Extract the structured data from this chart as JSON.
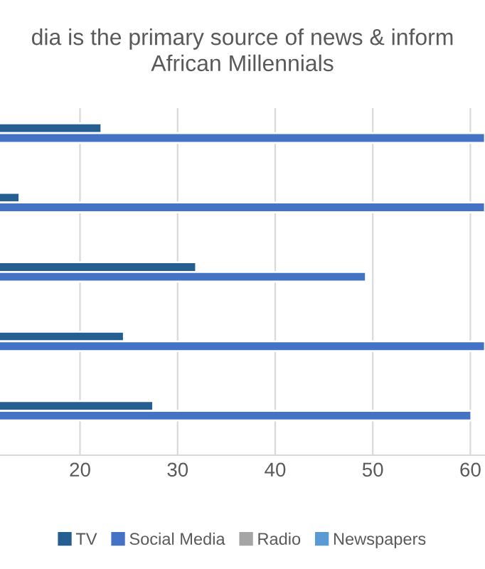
{
  "chart_data": {
    "type": "bar",
    "orientation": "horizontal",
    "title": "dia is the primary source of news & inform\nAfrican Millennials",
    "categories": [
      null,
      null,
      null,
      null,
      null
    ],
    "series": [
      {
        "name": "TV",
        "color": "#255e91",
        "values": [
          22.2,
          13.8,
          31.9,
          24.5,
          27.5
        ]
      },
      {
        "name": "Social Media",
        "color": "#4472c4",
        "values": [
          61.5,
          61.5,
          49.3,
          61.5,
          60.1
        ]
      },
      {
        "name": "Radio",
        "color": "#a5a5a5",
        "values": [
          null,
          null,
          null,
          null,
          null
        ]
      },
      {
        "name": "Newspapers",
        "color": "#5b9bd5",
        "values": [
          null,
          null,
          null,
          null,
          null
        ]
      }
    ],
    "xlim": [
      11.8,
      61.5
    ],
    "xticks": [
      20,
      30,
      40,
      50,
      60
    ],
    "grid": "x",
    "legend": "bottom",
    "tick_labels": "x"
  }
}
